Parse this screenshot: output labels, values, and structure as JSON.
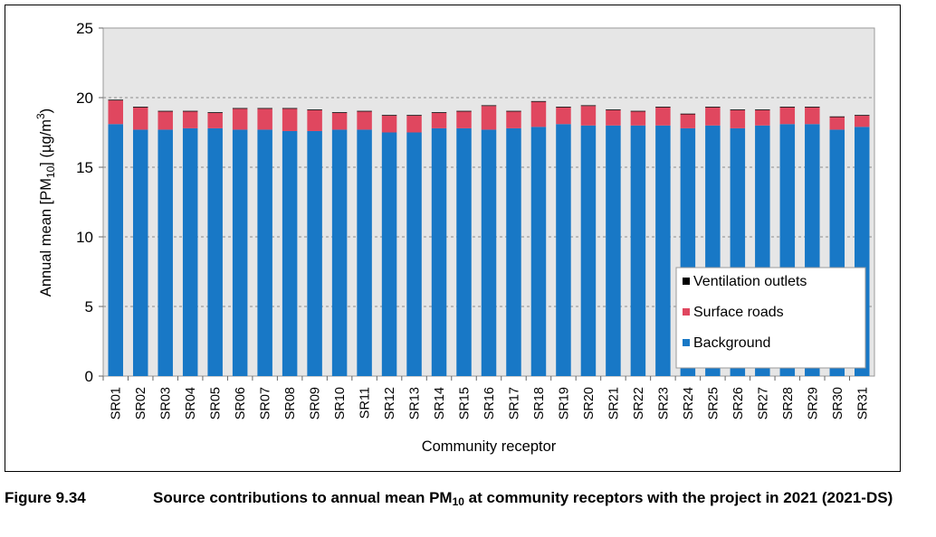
{
  "figure": {
    "number": "Figure 9.34",
    "caption_pre": "Source contributions to annual mean PM",
    "caption_sub": "10",
    "caption_post": " at community receptors with the project in 2021 (2021-DS)"
  },
  "chart_data": {
    "type": "bar",
    "stacked": true,
    "xlabel": "Community receptor",
    "ylabel": {
      "pre": "Annual mean [PM",
      "sub": "10",
      "mid": "] (µg/m",
      "sup": "3",
      "post": ")"
    },
    "ylim": [
      0,
      25
    ],
    "yticks": [
      0,
      5,
      10,
      15,
      20,
      25
    ],
    "grid": "horizontal",
    "plot_background": "#e6e6e6",
    "legend_position": "bottom-right",
    "categories": [
      "SR01",
      "SR02",
      "SR03",
      "SR04",
      "SR05",
      "SR06",
      "SR07",
      "SR08",
      "SR09",
      "SR10",
      "SR11",
      "SR12",
      "SR13",
      "SR14",
      "SR15",
      "SR16",
      "SR17",
      "SR18",
      "SR19",
      "SR20",
      "SR21",
      "SR22",
      "SR23",
      "SR24",
      "SR25",
      "SR26",
      "SR27",
      "SR28",
      "SR29",
      "SR30",
      "SR31"
    ],
    "series": [
      {
        "name": "Background",
        "color": "#1878c6",
        "values": [
          18.1,
          17.7,
          17.7,
          17.8,
          17.8,
          17.7,
          17.7,
          17.6,
          17.6,
          17.7,
          17.7,
          17.5,
          17.5,
          17.8,
          17.8,
          17.7,
          17.8,
          17.9,
          18.1,
          18.0,
          18.0,
          18.0,
          18.0,
          17.8,
          18.0,
          17.8,
          18.0,
          18.1,
          18.1,
          17.7,
          17.9
        ]
      },
      {
        "name": "Surface roads",
        "color": "#e0475f",
        "values": [
          1.7,
          1.6,
          1.3,
          1.2,
          1.1,
          1.5,
          1.5,
          1.6,
          1.5,
          1.2,
          1.3,
          1.2,
          1.2,
          1.1,
          1.2,
          1.7,
          1.2,
          1.8,
          1.2,
          1.4,
          1.1,
          1.0,
          1.3,
          1.0,
          1.3,
          1.3,
          1.1,
          1.2,
          1.2,
          0.9,
          0.8
        ]
      },
      {
        "name": "Ventilation outlets",
        "color": "#000000",
        "values": [
          0.05,
          0.05,
          0.05,
          0.05,
          0.05,
          0.05,
          0.05,
          0.05,
          0.05,
          0.05,
          0.05,
          0.05,
          0.05,
          0.05,
          0.05,
          0.05,
          0.05,
          0.05,
          0.05,
          0.05,
          0.05,
          0.05,
          0.05,
          0.05,
          0.05,
          0.05,
          0.05,
          0.05,
          0.05,
          0.05,
          0.05
        ]
      }
    ],
    "legend_order": [
      "Ventilation outlets",
      "Surface roads",
      "Background"
    ]
  }
}
